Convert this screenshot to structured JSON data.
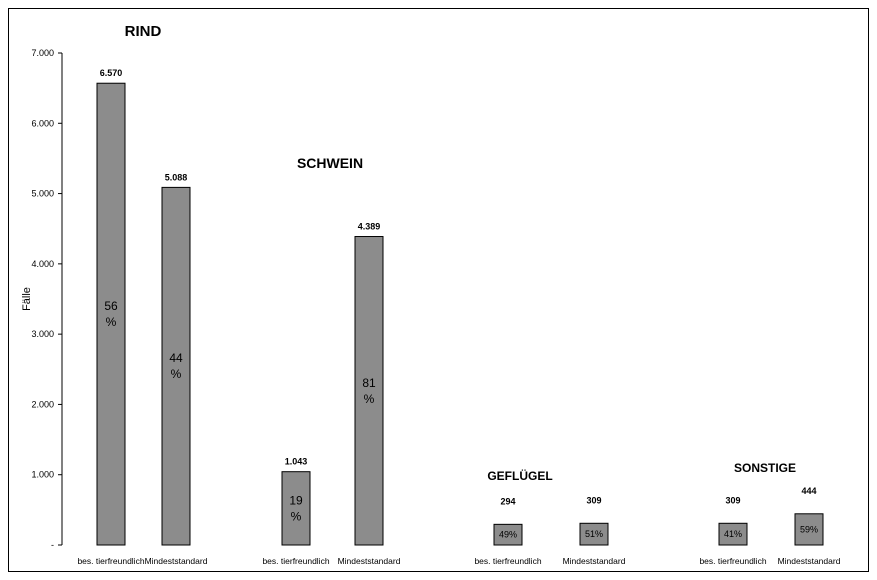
{
  "chart_data": {
    "type": "bar",
    "ylabel": "Fälle",
    "ylim": [
      0,
      7000
    ],
    "yticks": [
      "-",
      "1.000",
      "2.000",
      "3.000",
      "4.000",
      "5.000",
      "6.000",
      "7.000"
    ],
    "grid": false,
    "bar_color": "#8c8c8c",
    "groups": [
      {
        "title": "RIND",
        "bars": [
          {
            "category": "bes. tierfreundlich",
            "value": 6570,
            "value_label": "6.570",
            "percent_label": "56\n%"
          },
          {
            "category": "Mindeststandard",
            "value": 5088,
            "value_label": "5.088",
            "percent_label": "44\n%"
          }
        ]
      },
      {
        "title": "SCHWEIN",
        "bars": [
          {
            "category": "bes. tierfreundlich",
            "value": 1043,
            "value_label": "1.043",
            "percent_label": "19\n%"
          },
          {
            "category": "Mindeststandard",
            "value": 4389,
            "value_label": "4.389",
            "percent_label": "81\n%"
          }
        ]
      },
      {
        "title": "GEFLÜGEL",
        "bars": [
          {
            "category": "bes. tierfreundlich",
            "value": 294,
            "value_label": "294",
            "percent_label": "49%"
          },
          {
            "category": "Mindeststandard",
            "value": 309,
            "value_label": "309",
            "percent_label": "51%"
          }
        ]
      },
      {
        "title": "SONSTIGE",
        "bars": [
          {
            "category": "bes. tierfreundlich",
            "value": 309,
            "value_label": "309",
            "percent_label": "41%"
          },
          {
            "category": "Mindeststandard",
            "value": 444,
            "value_label": "444",
            "percent_label": "59%"
          }
        ]
      }
    ]
  }
}
